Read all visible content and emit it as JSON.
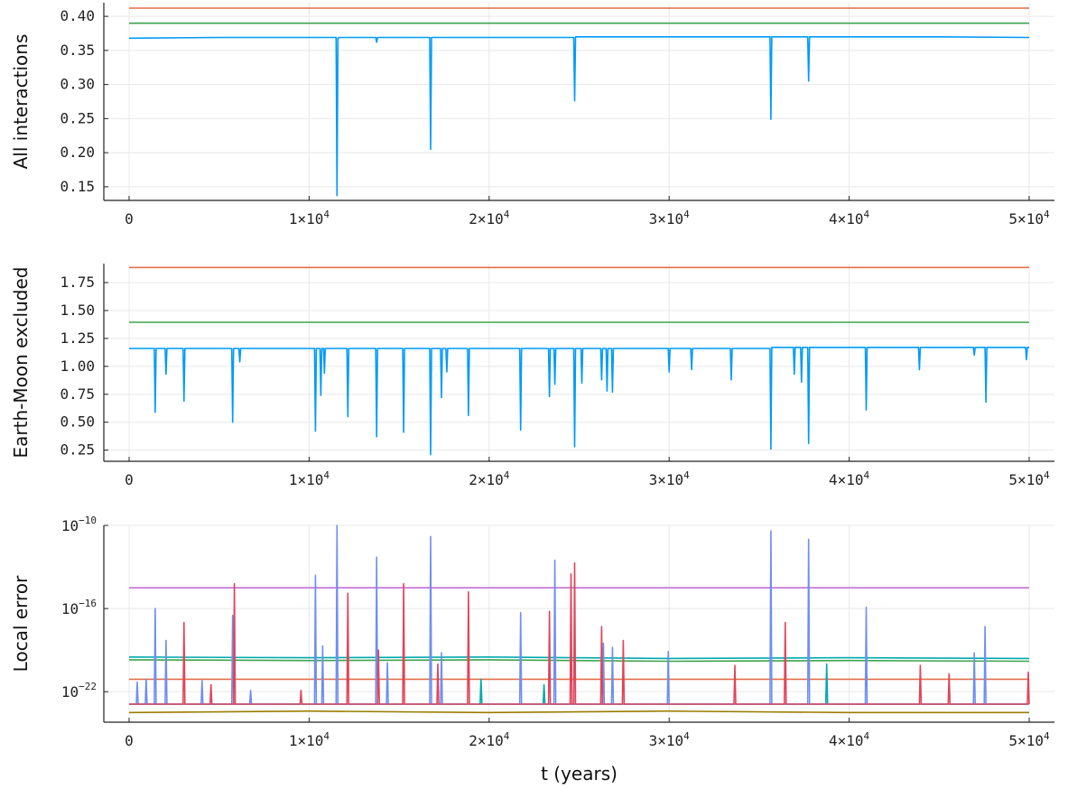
{
  "chart_data": [
    {
      "type": "line",
      "ylabel": "All interactions",
      "xlabel": "",
      "xlim": [
        0,
        50000
      ],
      "ylim": [
        0.13,
        0.42
      ],
      "x_ticks": [
        0,
        10000,
        20000,
        30000,
        40000,
        50000
      ],
      "x_tick_labels": [
        {
          "base": "0",
          "exp": ""
        },
        {
          "base": "1×10",
          "exp": "4"
        },
        {
          "base": "2×10",
          "exp": "4"
        },
        {
          "base": "3×10",
          "exp": "4"
        },
        {
          "base": "4×10",
          "exp": "4"
        },
        {
          "base": "5×10",
          "exp": "4"
        }
      ],
      "y_ticks": [
        0.15,
        0.2,
        0.25,
        0.3,
        0.35,
        0.4
      ],
      "y_tick_labels": [
        "0.15",
        "0.20",
        "0.25",
        "0.30",
        "0.35",
        "0.40"
      ],
      "grid": true,
      "series": [
        {
          "color": "#e26f46",
          "x": [
            0,
            50000
          ],
          "y": [
            0.412,
            0.412
          ]
        },
        {
          "color": "#3da44d",
          "x": [
            0,
            50000
          ],
          "y": [
            0.39,
            0.39
          ]
        },
        {
          "color": "#009af9",
          "x": [
            0,
            5000,
            11500,
            11550,
            11600,
            11700,
            13700,
            13750,
            13800,
            16700,
            16750,
            16800,
            20000,
            24700,
            24750,
            24800,
            30000,
            35600,
            35650,
            35700,
            37700,
            37750,
            37800,
            45000,
            50000
          ],
          "y": [
            0.368,
            0.369,
            0.369,
            0.137,
            0.368,
            0.369,
            0.369,
            0.362,
            0.369,
            0.369,
            0.205,
            0.369,
            0.369,
            0.369,
            0.276,
            0.37,
            0.37,
            0.37,
            0.249,
            0.37,
            0.37,
            0.305,
            0.37,
            0.37,
            0.369
          ]
        }
      ]
    },
    {
      "type": "line",
      "ylabel": "Earth-Moon excluded",
      "xlabel": "",
      "xlim": [
        0,
        50000
      ],
      "ylim": [
        0.15,
        1.92
      ],
      "x_ticks": [
        0,
        10000,
        20000,
        30000,
        40000,
        50000
      ],
      "x_tick_labels": [
        {
          "base": "0",
          "exp": ""
        },
        {
          "base": "1×10",
          "exp": "4"
        },
        {
          "base": "2×10",
          "exp": "4"
        },
        {
          "base": "3×10",
          "exp": "4"
        },
        {
          "base": "4×10",
          "exp": "4"
        },
        {
          "base": "5×10",
          "exp": "4"
        }
      ],
      "y_ticks": [
        0.25,
        0.5,
        0.75,
        1.0,
        1.25,
        1.5,
        1.75
      ],
      "y_tick_labels": [
        "0.25",
        "0.50",
        "0.75",
        "1.00",
        "1.25",
        "1.50",
        "1.75"
      ],
      "grid": true,
      "series": [
        {
          "color": "#e26f46",
          "x": [
            0,
            50000
          ],
          "y": [
            1.885,
            1.885
          ]
        },
        {
          "color": "#3da44d",
          "x": [
            0,
            50000
          ],
          "y": [
            1.395,
            1.395
          ]
        },
        {
          "color": "#009af9",
          "x": [
            0,
            1400,
            1450,
            1500,
            2000,
            2050,
            2100,
            3000,
            3050,
            3100,
            5700,
            5750,
            5800,
            6100,
            6150,
            6200,
            10300,
            10350,
            10400,
            10600,
            10650,
            10700,
            10800,
            10850,
            10900,
            12100,
            12150,
            12200,
            13700,
            13750,
            13800,
            15200,
            15250,
            15300,
            16700,
            16750,
            16800,
            17300,
            17350,
            17400,
            17600,
            17650,
            17700,
            18800,
            18850,
            18900,
            21700,
            21750,
            21800,
            23300,
            23350,
            23400,
            23600,
            23650,
            23700,
            24700,
            24750,
            24800,
            25100,
            25150,
            25200,
            26200,
            26250,
            26300,
            26500,
            26550,
            26600,
            26800,
            26850,
            26900,
            29950,
            30000,
            30050,
            31200,
            31250,
            31300,
            33400,
            33450,
            33500,
            35600,
            35650,
            35700,
            36900,
            36950,
            37000,
            37300,
            37350,
            37400,
            37700,
            37750,
            37800,
            40900,
            40950,
            41000,
            43850,
            43900,
            43950,
            46900,
            46950,
            47000,
            47550,
            47600,
            47650,
            49800,
            49850,
            49900,
            50000
          ],
          "y": [
            1.16,
            1.16,
            0.59,
            1.16,
            1.16,
            0.93,
            1.16,
            1.16,
            0.69,
            1.16,
            1.16,
            0.5,
            1.16,
            1.16,
            1.04,
            1.16,
            1.16,
            0.42,
            1.16,
            1.16,
            0.74,
            1.16,
            1.16,
            0.94,
            1.16,
            1.16,
            0.55,
            1.16,
            1.16,
            0.37,
            1.16,
            1.16,
            0.41,
            1.16,
            1.16,
            0.21,
            1.16,
            1.16,
            0.72,
            1.16,
            1.16,
            0.95,
            1.16,
            1.16,
            0.56,
            1.16,
            1.16,
            0.43,
            1.16,
            1.16,
            0.73,
            1.16,
            1.16,
            0.84,
            1.16,
            1.16,
            0.28,
            1.16,
            1.16,
            0.85,
            1.16,
            1.16,
            0.88,
            1.16,
            1.16,
            0.78,
            1.16,
            1.16,
            0.77,
            1.16,
            1.16,
            0.95,
            1.16,
            1.16,
            0.97,
            1.16,
            1.16,
            0.88,
            1.16,
            1.16,
            0.26,
            1.17,
            1.17,
            0.93,
            1.17,
            1.17,
            0.86,
            1.17,
            1.17,
            0.31,
            1.17,
            1.17,
            0.61,
            1.17,
            1.17,
            0.97,
            1.17,
            1.17,
            1.1,
            1.17,
            1.17,
            0.68,
            1.17,
            1.17,
            1.06,
            1.17,
            1.17
          ]
        }
      ]
    },
    {
      "type": "line",
      "ylabel": "Local error",
      "xlabel": "t (years)",
      "xlim": [
        0,
        50000
      ],
      "log_scale_y": true,
      "ylim_exponent": [
        -24.2,
        -10
      ],
      "x_ticks": [
        0,
        10000,
        20000,
        30000,
        40000,
        50000
      ],
      "x_tick_labels": [
        {
          "base": "0",
          "exp": ""
        },
        {
          "base": "1×10",
          "exp": "4"
        },
        {
          "base": "2×10",
          "exp": "4"
        },
        {
          "base": "3×10",
          "exp": "4"
        },
        {
          "base": "4×10",
          "exp": "4"
        },
        {
          "base": "5×10",
          "exp": "4"
        }
      ],
      "y_ticks_exponent": [
        -22,
        -16,
        -10
      ],
      "y_tick_labels": [
        {
          "base": "10",
          "exp": "−22"
        },
        {
          "base": "10",
          "exp": "−16"
        },
        {
          "base": "10",
          "exp": "−10"
        }
      ],
      "grid": true,
      "series": [
        {
          "color": "#c271d2",
          "x": [
            0,
            50000
          ],
          "y_exponent": [
            -14.5,
            -14.5
          ]
        },
        {
          "color": "#e26f46",
          "x": [
            0,
            50000
          ],
          "y_exponent": [
            -21.1,
            -21.1
          ]
        },
        {
          "color": "#00a9ad",
          "x": [
            0,
            10000,
            20000,
            30000,
            40000,
            50000
          ],
          "y_exponent": [
            -19.5,
            -19.55,
            -19.5,
            -19.6,
            -19.55,
            -19.6
          ]
        },
        {
          "color": "#3da44d",
          "x": [
            0,
            10000,
            20000,
            30000,
            40000,
            50000
          ],
          "y_exponent": [
            -19.7,
            -19.75,
            -19.7,
            -19.8,
            -19.75,
            -19.8
          ]
        },
        {
          "color": "#9b7b00",
          "x": [
            0,
            10000,
            20000,
            30000,
            40000,
            50000
          ],
          "y_exponent": [
            -23.5,
            -23.4,
            -23.5,
            -23.4,
            -23.5,
            -23.5
          ]
        },
        {
          "color": "#00a9ad",
          "x": [
            0,
            19500,
            19550,
            19600,
            23000,
            23050,
            23100,
            38700,
            38750,
            38800,
            50000
          ],
          "y_exponent": [
            -22.9,
            -22.9,
            -21.1,
            -22.9,
            -22.9,
            -21.5,
            -22.9,
            -22.9,
            -20.0,
            -22.9,
            -22.9
          ]
        },
        {
          "color": "#6f8ef0",
          "x": [
            0,
            400,
            450,
            500,
            900,
            950,
            1000,
            1400,
            1450,
            1500,
            2000,
            2050,
            2100,
            4000,
            4050,
            4100,
            5700,
            5750,
            5800,
            6700,
            6750,
            6800,
            10300,
            10350,
            10400,
            10700,
            10750,
            10800,
            11500,
            11550,
            11600,
            13700,
            13750,
            13800,
            14300,
            14350,
            14400,
            16700,
            16750,
            16800,
            17300,
            17350,
            17400,
            21700,
            21750,
            21800,
            23600,
            23650,
            23700,
            26300,
            26350,
            26400,
            26800,
            26850,
            26900,
            29900,
            29950,
            30000,
            35600,
            35650,
            35700,
            37700,
            37750,
            37800,
            40900,
            40950,
            41000,
            46900,
            46950,
            47000,
            47500,
            47550,
            47600,
            50000
          ],
          "y_exponent": [
            -22.9,
            -22.9,
            -21.3,
            -22.9,
            -22.9,
            -21.1,
            -22.9,
            -22.9,
            -16.0,
            -22.9,
            -22.9,
            -18.3,
            -22.9,
            -22.9,
            -21.2,
            -22.9,
            -22.9,
            -16.5,
            -22.9,
            -22.9,
            -21.9,
            -22.9,
            -22.9,
            -13.6,
            -22.9,
            -22.9,
            -18.7,
            -22.9,
            -22.9,
            -10.0,
            -22.9,
            -22.9,
            -12.3,
            -22.9,
            -22.9,
            -19.9,
            -22.9,
            -22.9,
            -10.8,
            -22.9,
            -22.9,
            -19.2,
            -22.9,
            -22.9,
            -16.3,
            -22.9,
            -22.9,
            -12.5,
            -22.9,
            -22.9,
            -18.5,
            -22.9,
            -22.9,
            -18.8,
            -22.9,
            -22.9,
            -19.1,
            -22.9,
            -22.9,
            -10.4,
            -22.9,
            -22.9,
            -11.0,
            -22.9,
            -22.9,
            -15.9,
            -22.9,
            -22.9,
            -19.2,
            -22.9,
            -22.9,
            -17.3,
            -22.9,
            -22.9
          ]
        },
        {
          "color": "#e0445a",
          "x": [
            0,
            3000,
            3050,
            3100,
            4500,
            4550,
            4600,
            5800,
            5850,
            5900,
            9500,
            9550,
            9600,
            12100,
            12150,
            12200,
            13800,
            13850,
            13900,
            15200,
            15250,
            15300,
            17100,
            17150,
            17200,
            18800,
            18850,
            18900,
            23300,
            23350,
            23400,
            24500,
            24550,
            24600,
            24700,
            24750,
            24800,
            26200,
            26250,
            26300,
            27400,
            27450,
            27500,
            33600,
            33650,
            33700,
            36400,
            36450,
            36500,
            43900,
            43950,
            44000,
            45500,
            45550,
            45600,
            49900,
            49950,
            50000
          ],
          "y_exponent": [
            -22.9,
            -22.9,
            -17.0,
            -22.9,
            -22.9,
            -21.5,
            -22.9,
            -22.9,
            -14.2,
            -22.9,
            -22.9,
            -21.9,
            -22.9,
            -22.9,
            -14.9,
            -22.9,
            -22.9,
            -19.0,
            -22.9,
            -22.9,
            -14.2,
            -22.9,
            -22.9,
            -20.0,
            -22.9,
            -22.9,
            -14.8,
            -22.9,
            -22.9,
            -16.2,
            -22.9,
            -22.9,
            -13.5,
            -22.9,
            -22.9,
            -12.7,
            -22.9,
            -22.9,
            -17.3,
            -22.9,
            -22.9,
            -18.3,
            -22.9,
            -22.9,
            -20.1,
            -22.9,
            -22.9,
            -17.0,
            -22.9,
            -22.9,
            -20.1,
            -22.9,
            -22.9,
            -20.7,
            -22.9,
            -22.9,
            -20.6,
            -22.9
          ]
        }
      ]
    }
  ]
}
